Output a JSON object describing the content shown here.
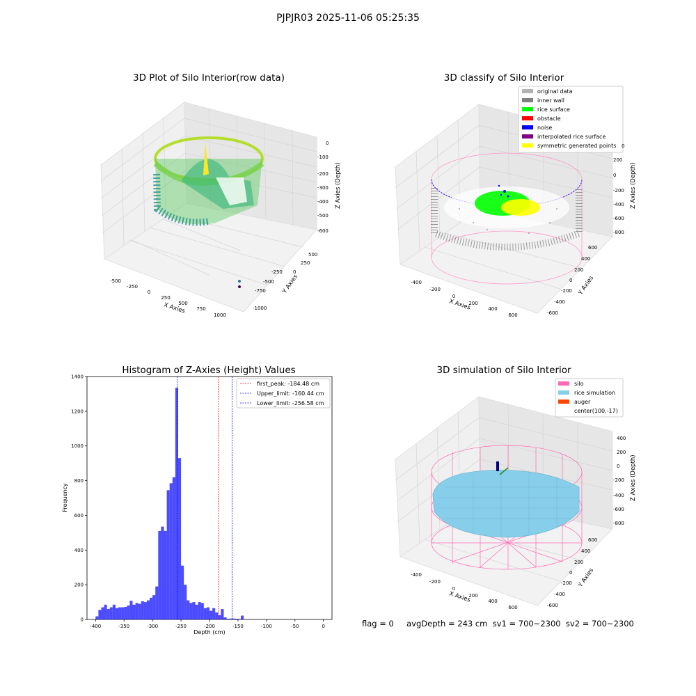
{
  "figure": {
    "suptitle": "PJPJR03 2025-11-06 05:25:35",
    "footer": "flag = 0     avgDepth = 243 cm  sv1 = 700~2300  sv2 = 700~2300"
  },
  "panels": {
    "raw": {
      "title": "3D Plot of Silo Interior(row data)",
      "xlabel": "X Axies",
      "ylabel": "Y Axies",
      "zlabel": "Z Axies (Depth)",
      "xticks": [
        "-500",
        "-250",
        "0",
        "250",
        "500",
        "750",
        "1000"
      ],
      "yticks": [
        "500",
        "250",
        "0",
        "-250",
        "-500",
        "-750",
        "-1000"
      ],
      "zticks": [
        "0",
        "-100",
        "-200",
        "-300",
        "-400",
        "-500",
        "-600"
      ]
    },
    "classify": {
      "title": "3D classify of Silo Interior",
      "xlabel": "X Axies",
      "ylabel": "Y Axies",
      "zlabel": "Z Axies (Depth)",
      "xticks": [
        "-400",
        "-200",
        "0",
        "200",
        "400",
        "600"
      ],
      "yticks": [
        "600",
        "400",
        "200",
        "0",
        "-200",
        "-400",
        "-600"
      ],
      "zticks": [
        "200",
        "0",
        "-200",
        "-400",
        "-600",
        "-800"
      ],
      "top_tick_partial": "0",
      "legend": [
        {
          "label": "original data",
          "color": "#b3b3b3"
        },
        {
          "label": "inner wall",
          "color": "#808080"
        },
        {
          "label": "rice surface",
          "color": "#00ff00"
        },
        {
          "label": "obstacle",
          "color": "#ff0000"
        },
        {
          "label": "noise",
          "color": "#0000ff"
        },
        {
          "label": "interpolated rice surface",
          "color": "#800080"
        },
        {
          "label": "symmetric generated points",
          "color": "#ffff00"
        }
      ]
    },
    "simulation": {
      "title": "3D simulation of Silo Interior",
      "xlabel": "X Axies",
      "ylabel": "Y Axies",
      "zlabel": "Z Axies (Depth)",
      "xticks": [
        "-400",
        "-200",
        "0",
        "200",
        "400",
        "600"
      ],
      "yticks": [
        "600",
        "400",
        "200",
        "0",
        "-200",
        "-400",
        "-600"
      ],
      "zticks": [
        "400",
        "200",
        "0",
        "-200",
        "-400",
        "-600",
        "-800"
      ],
      "legend": [
        {
          "label": "silo",
          "color": "#ff69b4"
        },
        {
          "label": "rice simulation",
          "color": "#87ceeb"
        },
        {
          "label": "auger",
          "color": "#ff4500"
        },
        {
          "label": "center(100,-17)",
          "color": ""
        }
      ]
    }
  },
  "chart_data": [
    {
      "type": "bar",
      "title": "Histogram of Z-Axies (Height) Values",
      "xlabel": "Depth (cm)",
      "ylabel": "Frequency",
      "xlim": [
        -415,
        15
      ],
      "ylim": [
        0,
        1400
      ],
      "xticks": [
        -400,
        -350,
        -300,
        -250,
        -200,
        -150,
        -100,
        -50,
        0
      ],
      "yticks": [
        0,
        200,
        400,
        600,
        800,
        1000,
        1200,
        1400
      ],
      "bar_color": "#0000ff",
      "bin_start": -400,
      "bin_width": 5,
      "values": [
        18,
        55,
        70,
        85,
        60,
        70,
        85,
        65,
        70,
        70,
        72,
        80,
        108,
        85,
        95,
        90,
        105,
        100,
        110,
        125,
        140,
        190,
        510,
        535,
        510,
        745,
        785,
        820,
        1335,
        930,
        310,
        200,
        110,
        95,
        100,
        85,
        100,
        95,
        65,
        70,
        50,
        65,
        40,
        25,
        60,
        12,
        4,
        5,
        5,
        4,
        3,
        22
      ],
      "vlines": [
        {
          "x": -184.48,
          "color": "#ff0000",
          "label": "first_peak: -184.48 cm"
        },
        {
          "x": -160.44,
          "color": "#0000ff",
          "label": "Upper_limit: -160.44 cm"
        },
        {
          "x": -256.58,
          "color": "#0000ff",
          "label": "Lower_limit: -256.58 cm"
        }
      ],
      "grid": false,
      "legend_position": "top-right"
    }
  ]
}
